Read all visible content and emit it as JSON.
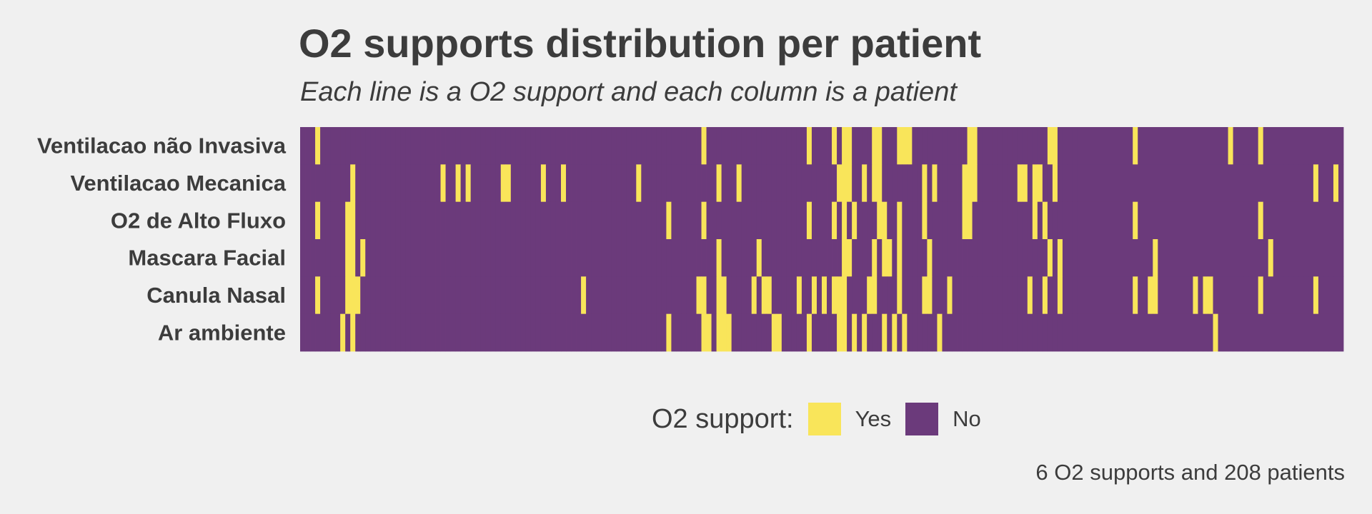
{
  "chart_data": {
    "type": "heatmap",
    "title": "O2 supports distribution per patient",
    "subtitle": "Each line is a O2 support and each column is a patient",
    "rows": [
      "Ventilacao não Invasiva",
      "Ventilacao Mecanica",
      "O2 de Alto Fluxo",
      "Mascara Facial",
      "Canula Nasal",
      "Ar ambiente"
    ],
    "n_patients": 208,
    "yes_patients": {
      "Ventilacao não Invasiva": [
        3,
        80,
        101,
        106,
        108,
        109,
        114,
        115,
        119,
        120,
        121,
        133,
        134,
        149,
        150,
        166,
        185,
        191
      ],
      "Ventilacao Mecanica": [
        10,
        28,
        31,
        33,
        40,
        41,
        48,
        52,
        67,
        83,
        87,
        107,
        108,
        109,
        112,
        114,
        115,
        124,
        126,
        132,
        133,
        134,
        143,
        144,
        146,
        147,
        150,
        202,
        206
      ],
      "O2 de Alto Fluxo": [
        3,
        9,
        10,
        73,
        80,
        101,
        106,
        108,
        110,
        115,
        116,
        119,
        124,
        132,
        133,
        146,
        148,
        166,
        191
      ],
      "Mascara Facial": [
        9,
        10,
        12,
        83,
        91,
        108,
        109,
        114,
        116,
        117,
        119,
        125,
        149,
        151,
        170,
        193
      ],
      "Canula Nasal": [
        3,
        9,
        10,
        11,
        56,
        79,
        80,
        83,
        84,
        90,
        92,
        93,
        99,
        102,
        104,
        106,
        107,
        108,
        113,
        114,
        119,
        124,
        125,
        129,
        145,
        148,
        151,
        166,
        169,
        170,
        178,
        180,
        181,
        191,
        202
      ],
      "Ar ambiente": [
        8,
        10,
        73,
        80,
        81,
        83,
        84,
        85,
        94,
        95,
        101,
        107,
        108,
        110,
        112,
        116,
        118,
        120,
        127,
        182
      ]
    },
    "legend": {
      "title": "O2 support:",
      "entries": [
        "Yes",
        "No"
      ],
      "position": "bottom"
    },
    "colors": {
      "Yes": "#f9e55a",
      "No": "#6b3a7b"
    },
    "caption": "6 O2 supports and 208 patients"
  }
}
